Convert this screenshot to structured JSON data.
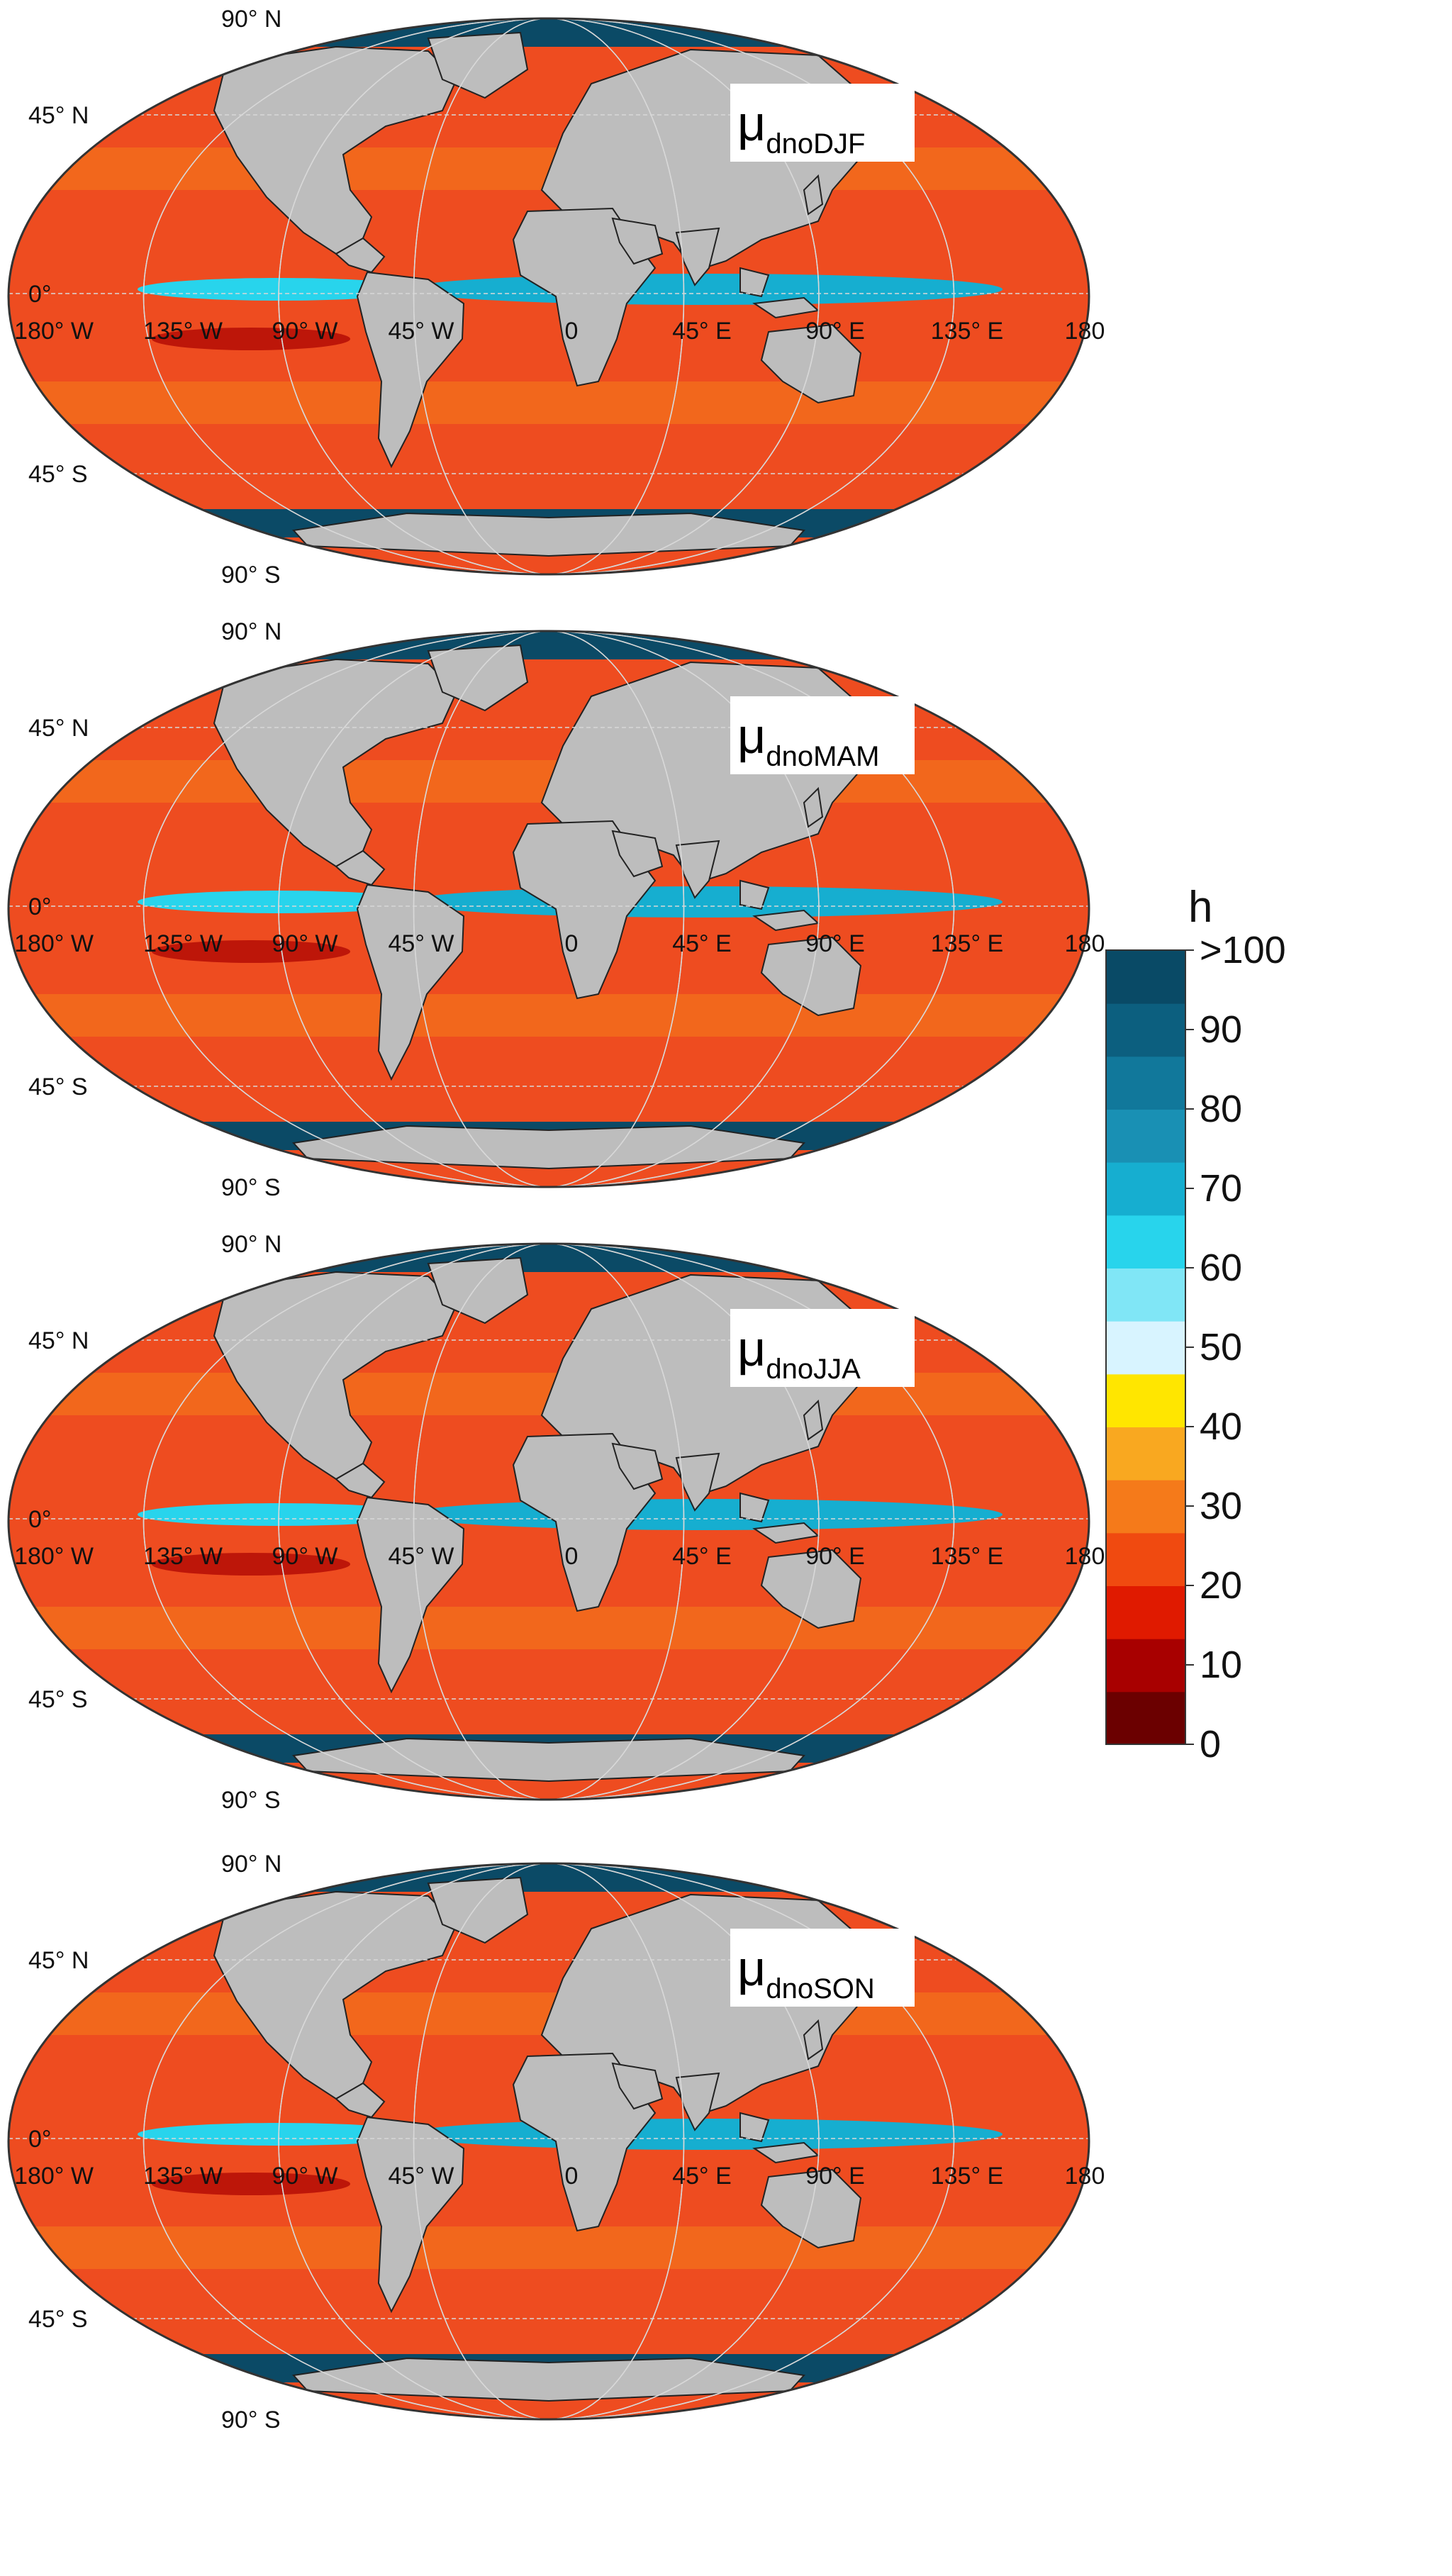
{
  "panels": [
    {
      "label_symbol": "μ",
      "label_subscript": "dnoDJF",
      "lat_labels": [
        "90° N",
        "45° N",
        "0°",
        "45° S",
        "90° S"
      ],
      "lon_labels": [
        "180° W",
        "135° W",
        "90° W",
        "45° W",
        "0",
        "45° E",
        "90° E",
        "135° E",
        "180"
      ]
    },
    {
      "label_symbol": "μ",
      "label_subscript": "dnoMAM",
      "lat_labels": [
        "90° N",
        "45° N",
        "0°",
        "45° S",
        "90° S"
      ],
      "lon_labels": [
        "180° W",
        "135° W",
        "90° W",
        "45° W",
        "0",
        "45° E",
        "90° E",
        "135° E",
        "180"
      ]
    },
    {
      "label_symbol": "μ",
      "label_subscript": "dnoJJA",
      "lat_labels": [
        "90° N",
        "45° N",
        "0°",
        "45° S",
        "90° S"
      ],
      "lon_labels": [
        "180° W",
        "135° W",
        "90° W",
        "45° W",
        "0",
        "45° E",
        "90° E",
        "135° E",
        "180"
      ]
    },
    {
      "label_symbol": "μ",
      "label_subscript": "dnoSON",
      "lat_labels": [
        "90° N",
        "45° N",
        "0°",
        "45° S",
        "90° S"
      ],
      "lon_labels": [
        "180° W",
        "135° W",
        "90° W",
        "45° W",
        "0",
        "45° E",
        "90° E",
        "135° E",
        "180"
      ]
    }
  ],
  "colorbar": {
    "title": "h",
    "ticks": [
      ">100",
      "90",
      "80",
      "70",
      "60",
      "50",
      "40",
      "30",
      "20",
      "10",
      "0"
    ],
    "colors": [
      "#6b0000",
      "#a80000",
      "#e01a00",
      "#f04a10",
      "#f57a1a",
      "#f9a820",
      "#ffe600",
      "#d8f4ff",
      "#80e6f6",
      "#28d4ec",
      "#16aed0",
      "#1990b4",
      "#11789b",
      "#0c5f7f",
      "#094a66"
    ]
  },
  "colors": {
    "ocean": "#ee4c20",
    "land": "#bdbdbd",
    "polar": "#0b4a66",
    "grid": "#d8d8d8"
  }
}
